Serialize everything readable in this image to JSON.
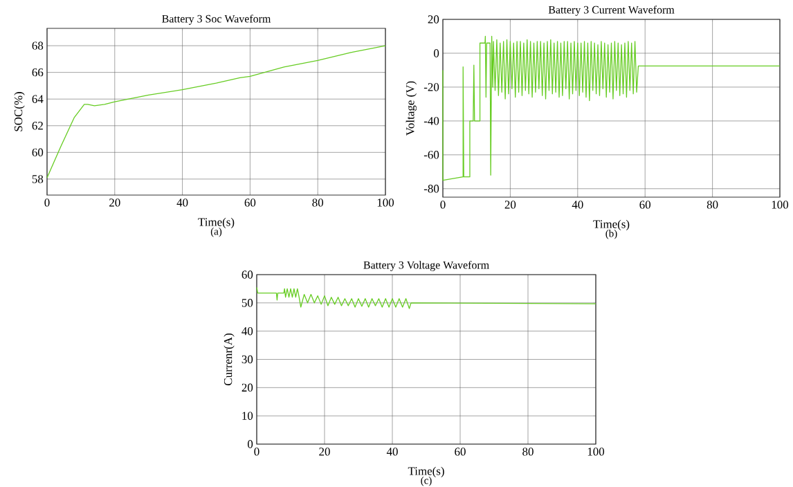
{
  "chart_data": [
    {
      "type": "line",
      "title": "Battery 3 Soc Waveform",
      "xlabel": "Time(s)",
      "ylabel": "SOC(%)",
      "annotations": [
        "(a)"
      ],
      "series": [
        {
          "color": "#66cc22",
          "x": [
            0,
            4,
            8,
            11,
            12,
            14,
            17,
            20,
            30,
            40,
            50,
            57,
            60,
            70,
            80,
            90,
            100
          ],
          "values": [
            58.1,
            60.4,
            62.6,
            63.6,
            63.6,
            63.5,
            63.6,
            63.8,
            64.3,
            64.7,
            65.2,
            65.6,
            65.7,
            66.4,
            66.9,
            67.5,
            68.0
          ]
        }
      ],
      "xlim": [
        0,
        100
      ],
      "ylim": [
        56.8,
        69.3
      ],
      "xticks": [
        0,
        20,
        40,
        60,
        80,
        100
      ],
      "yticks": [
        58,
        60,
        62,
        64,
        66,
        68
      ],
      "grid": true,
      "marker": "none",
      "line_style": "solid"
    },
    {
      "type": "line",
      "title": "Battery 3 Current Waveform",
      "xlabel": "Time(s)",
      "ylabel": "Voltage (V)",
      "annotations": [
        "(b)"
      ],
      "series": [
        {
          "color": "#66cc22",
          "x": [
            0,
            0,
            6,
            6,
            6.2,
            8,
            8,
            9,
            9.2,
            9.4,
            11,
            11,
            12.5,
            12.6,
            12.8,
            13,
            14,
            14.2,
            14.5,
            14.8,
            15,
            15.5,
            16,
            16.5,
            17,
            17.5,
            18,
            18.5,
            19,
            19.5,
            20,
            20.5,
            21,
            21.5,
            22,
            22.5,
            23,
            23.5,
            24,
            24.5,
            25,
            25.5,
            26,
            26.5,
            27,
            27.5,
            28,
            28.5,
            29,
            29.5,
            30,
            30.5,
            31,
            31.5,
            32,
            32.5,
            33,
            33.5,
            34,
            34.5,
            35,
            35.5,
            36,
            36.5,
            37,
            37.5,
            38,
            38.5,
            39,
            39.5,
            40,
            40.5,
            41,
            41.5,
            42,
            42.5,
            43,
            43.5,
            44,
            44.5,
            45,
            45.5,
            46,
            46.5,
            47,
            47.5,
            48,
            48.5,
            49,
            49.5,
            50,
            50.5,
            51,
            51.5,
            52,
            52.5,
            53,
            53.5,
            54,
            54.5,
            55,
            55.5,
            56,
            56.5,
            57,
            57.5,
            58,
            100
          ],
          "values": [
            -10,
            -75,
            -73,
            -8,
            -73,
            -73,
            -40,
            -40,
            -7,
            -40,
            -40,
            6,
            6,
            10,
            -26,
            6,
            6,
            -72,
            10,
            -20,
            7,
            -22,
            8,
            -25,
            6,
            -23,
            7,
            -27,
            8,
            -24,
            7,
            -21,
            6,
            -26,
            7,
            -23,
            7,
            -25,
            6,
            -22,
            8,
            -24,
            7,
            -26,
            6,
            -23,
            7,
            -21,
            7,
            -25,
            6,
            -27,
            7,
            -22,
            8,
            -24,
            6,
            -23,
            7,
            -26,
            6,
            -25,
            7,
            -21,
            7,
            -27,
            6,
            -24,
            7,
            -22,
            6,
            -25,
            6,
            -23,
            7,
            -26,
            6,
            -28,
            7,
            -22,
            6,
            -24,
            5,
            -25,
            7,
            -21,
            6,
            -26,
            5,
            -23,
            6,
            -27,
            7,
            -22,
            6,
            -25,
            5,
            -24,
            6,
            -26,
            7,
            -22,
            6,
            -24,
            7,
            -23,
            -7.5,
            -7.5
          ]
        }
      ],
      "xlim": [
        0,
        100
      ],
      "ylim": [
        -85,
        20
      ],
      "xticks": [
        0,
        20,
        40,
        60,
        80,
        100
      ],
      "yticks": [
        -80,
        -60,
        -40,
        -20,
        0,
        20
      ],
      "grid": true,
      "marker": "none",
      "line_style": "solid"
    },
    {
      "type": "line",
      "title": "Battery 3 Voltage Waveform",
      "xlabel": "Time(s)",
      "ylabel": "Currenr(A)",
      "annotations": [
        "(c)"
      ],
      "series": [
        {
          "color": "#66cc22",
          "x": [
            0,
            0.3,
            5.8,
            6,
            6.2,
            8,
            8.2,
            8.5,
            9,
            9.5,
            10,
            10.5,
            11,
            11.5,
            12,
            12.5,
            13,
            14,
            15,
            16,
            17,
            18,
            19,
            20,
            21,
            22,
            23,
            24,
            25,
            26,
            27,
            28,
            29,
            30,
            31,
            32,
            33,
            34,
            35,
            36,
            37,
            38,
            39,
            40,
            41,
            42,
            43,
            44,
            45,
            45.5,
            100
          ],
          "values": [
            55.5,
            53.5,
            53.5,
            51,
            53.5,
            53.5,
            55,
            52,
            55,
            52,
            55,
            52,
            55,
            52,
            55,
            52,
            48.5,
            53,
            50,
            53,
            50,
            52.5,
            49.5,
            52.5,
            49,
            52,
            49.5,
            52,
            49,
            51.5,
            49,
            51.5,
            48.5,
            51.5,
            48.8,
            51.5,
            48.5,
            51.5,
            49,
            51.5,
            48.5,
            51.5,
            48.5,
            51.5,
            48.5,
            51.5,
            48.5,
            51.5,
            48,
            50,
            49.7
          ]
        }
      ],
      "xlim": [
        0,
        100
      ],
      "ylim": [
        0,
        60
      ],
      "xticks": [
        0,
        20,
        40,
        60,
        80,
        100
      ],
      "yticks": [
        0,
        10,
        20,
        30,
        40,
        50,
        60
      ],
      "grid": true,
      "marker": "none",
      "line_style": "solid"
    }
  ]
}
